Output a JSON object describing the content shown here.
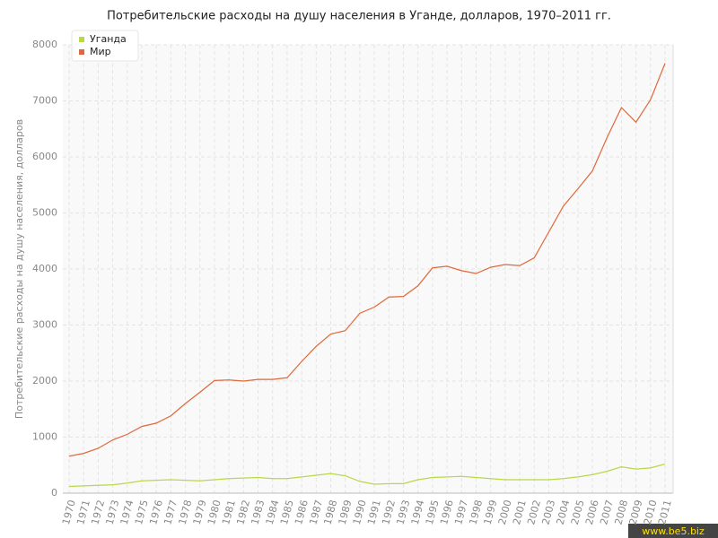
{
  "chart_data": {
    "type": "line",
    "title": "Потребительские расходы на душу населения в Уганде, долларов, 1970–2011 гг.",
    "y_label": "Потребительские расходы на душу населения, долларов",
    "categories": [
      "1970",
      "1971",
      "1972",
      "1973",
      "1974",
      "1975",
      "1976",
      "1977",
      "1978",
      "1979",
      "1980",
      "1981",
      "1982",
      "1983",
      "1984",
      "1985",
      "1986",
      "1987",
      "1988",
      "1989",
      "1990",
      "1991",
      "1992",
      "1993",
      "1994",
      "1995",
      "1996",
      "1997",
      "1998",
      "1999",
      "2000",
      "2001",
      "2002",
      "2003",
      "2004",
      "2005",
      "2006",
      "2007",
      "2008",
      "2009",
      "2010",
      "2011"
    ],
    "series": [
      {
        "name": "Уганда",
        "color": "#b8d848",
        "values": [
          120,
          130,
          140,
          150,
          180,
          220,
          230,
          240,
          230,
          220,
          240,
          260,
          270,
          280,
          260,
          260,
          290,
          320,
          350,
          310,
          210,
          160,
          170,
          170,
          240,
          280,
          290,
          300,
          280,
          260,
          240,
          240,
          240,
          240,
          260,
          290,
          330,
          390,
          470,
          430,
          450,
          520
        ]
      },
      {
        "name": "Мир",
        "color": "#e0683a",
        "values": [
          660,
          710,
          800,
          950,
          1050,
          1190,
          1250,
          1380,
          1600,
          1800,
          2010,
          2020,
          2000,
          2030,
          2030,
          2060,
          2350,
          2620,
          2840,
          2900,
          3210,
          3320,
          3500,
          3510,
          3700,
          4020,
          4050,
          3970,
          3920,
          4030,
          4080,
          4060,
          4200,
          4660,
          5120,
          5430,
          5750,
          6340,
          6880,
          6620,
          7020,
          7670
        ]
      }
    ],
    "ylim": [
      0,
      8000
    ],
    "yticks": [
      0,
      1000,
      2000,
      3000,
      4000,
      5000,
      6000,
      7000,
      8000
    ],
    "grid": true,
    "legend": "top-left",
    "watermark": "www.be5.biz"
  }
}
